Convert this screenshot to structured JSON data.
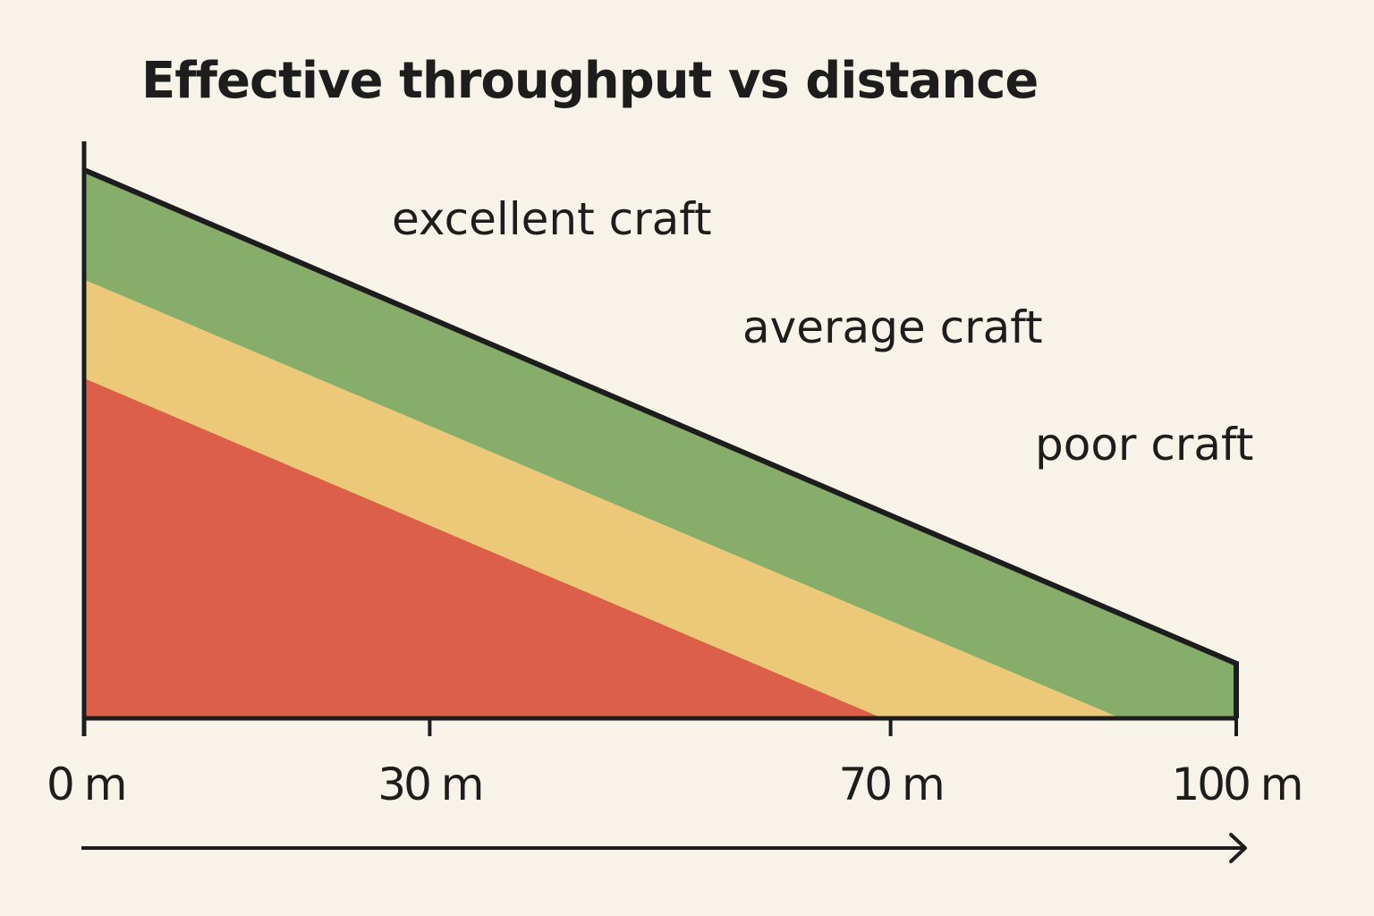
{
  "chart_data": {
    "type": "area",
    "title": "Effective throughput vs distance",
    "xlabel": "",
    "ylabel": "",
    "xlim": [
      0,
      100
    ],
    "x_ticks": [
      {
        "value": 0,
        "label": "0 m"
      },
      {
        "value": 30,
        "label": "30 m"
      },
      {
        "value": 70,
        "label": "70 m"
      },
      {
        "value": 100,
        "label": "100 m"
      }
    ],
    "grid": false,
    "series": [
      {
        "name": "excellent craft",
        "color": "#86ad6a",
        "x": [
          0,
          100
        ],
        "y": [
          100,
          10
        ]
      },
      {
        "name": "average craft",
        "color": "#ecc978",
        "x": [
          0,
          90
        ],
        "y": [
          80,
          0
        ]
      },
      {
        "name": "poor craft",
        "color": "#dc5f49",
        "x": [
          0,
          69.3
        ],
        "y": [
          62,
          0
        ]
      }
    ]
  }
}
